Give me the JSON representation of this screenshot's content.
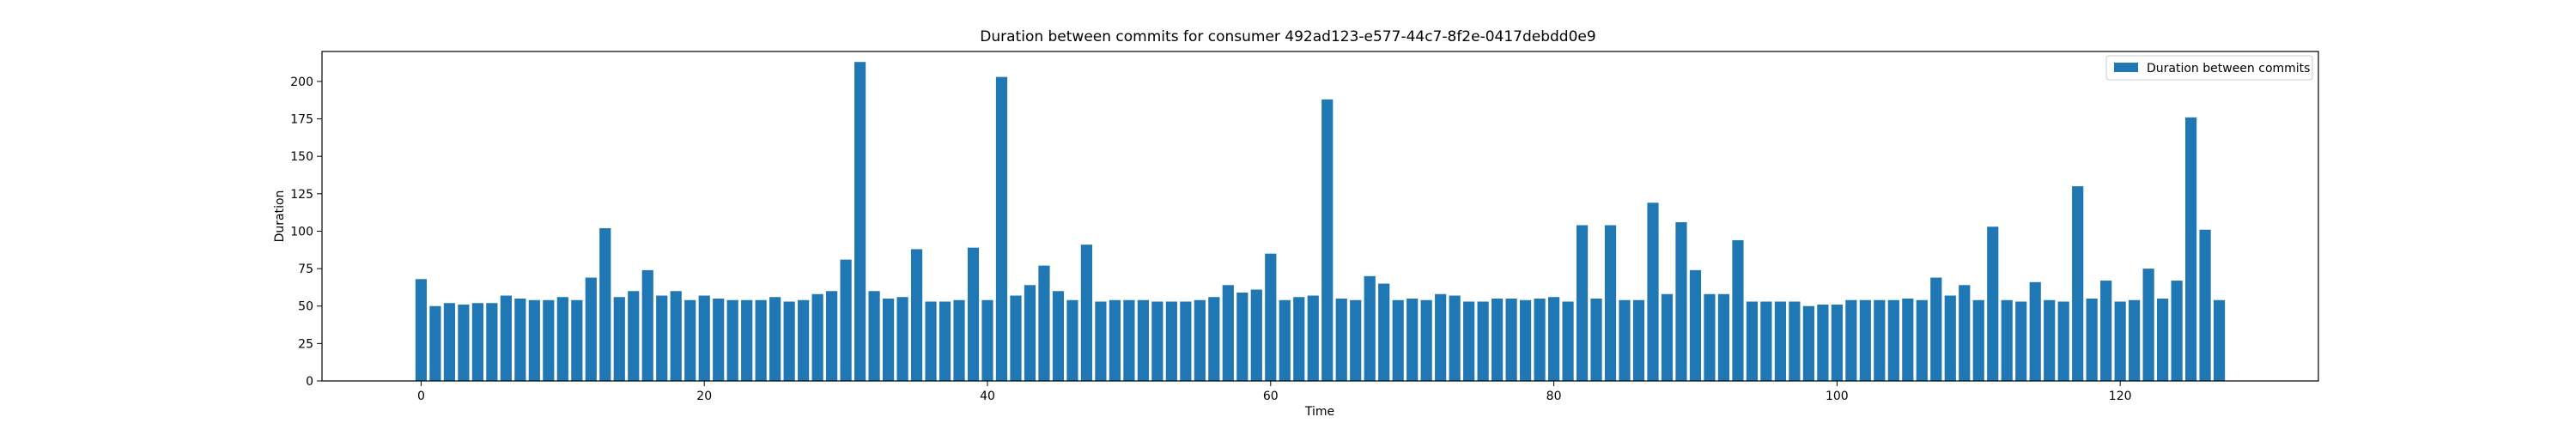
{
  "chart_data": {
    "type": "bar",
    "title": "Duration between commits for consumer 492ad123-e577-44c7-8f2e-0417debdd0e9",
    "xlabel": "Time",
    "ylabel": "Duration",
    "xlim": [
      -7,
      134
    ],
    "ylim": [
      0,
      220
    ],
    "xticks": [
      0,
      20,
      40,
      60,
      80,
      100,
      120
    ],
    "yticks": [
      0,
      25,
      50,
      75,
      100,
      125,
      150,
      175,
      200
    ],
    "grid": false,
    "legend_position": "top-right",
    "bar_color": "#1f77b4",
    "series": [
      {
        "name": "Duration between commits",
        "x": [
          0,
          1,
          2,
          3,
          4,
          5,
          6,
          7,
          8,
          9,
          10,
          11,
          12,
          13,
          14,
          15,
          16,
          17,
          18,
          19,
          20,
          21,
          22,
          23,
          24,
          25,
          26,
          27,
          28,
          29,
          30,
          31,
          32,
          33,
          34,
          35,
          36,
          37,
          38,
          39,
          40,
          41,
          42,
          43,
          44,
          45,
          46,
          47,
          48,
          49,
          50,
          51,
          52,
          53,
          54,
          55,
          56,
          57,
          58,
          59,
          60,
          61,
          62,
          63,
          64,
          65,
          66,
          67,
          68,
          69,
          70,
          71,
          72,
          73,
          74,
          75,
          76,
          77,
          78,
          79,
          80,
          81,
          82,
          83,
          84,
          85,
          86,
          87,
          88,
          89,
          90,
          91,
          92,
          93,
          94,
          95,
          96,
          97,
          98,
          99,
          100,
          101,
          102,
          103,
          104,
          105,
          106,
          107,
          108,
          109,
          110,
          111,
          112,
          113,
          114,
          115,
          116,
          117,
          118,
          119,
          120,
          121,
          122,
          123,
          124,
          125,
          126,
          127
        ],
        "values": [
          68,
          50,
          52,
          51,
          52,
          52,
          57,
          55,
          54,
          54,
          56,
          54,
          69,
          102,
          56,
          60,
          74,
          57,
          60,
          54,
          57,
          55,
          54,
          54,
          54,
          56,
          53,
          54,
          58,
          60,
          81,
          213,
          60,
          55,
          56,
          88,
          53,
          53,
          54,
          89,
          54,
          203,
          57,
          64,
          77,
          60,
          54,
          91,
          53,
          54,
          54,
          54,
          53,
          53,
          53,
          54,
          56,
          64,
          59,
          61,
          85,
          54,
          56,
          57,
          188,
          55,
          54,
          70,
          65,
          54,
          55,
          54,
          58,
          57,
          53,
          53,
          55,
          55,
          54,
          55,
          56,
          53,
          104,
          55,
          104,
          54,
          54,
          119,
          58,
          106,
          74,
          58,
          58,
          94,
          53,
          53,
          53,
          53,
          50,
          51,
          51,
          54,
          54,
          54,
          54,
          55,
          54,
          69,
          57,
          64,
          54,
          103,
          54,
          53,
          66,
          54,
          53,
          130,
          55,
          67,
          53,
          54,
          75,
          55,
          67,
          176,
          101,
          54
        ]
      }
    ]
  }
}
